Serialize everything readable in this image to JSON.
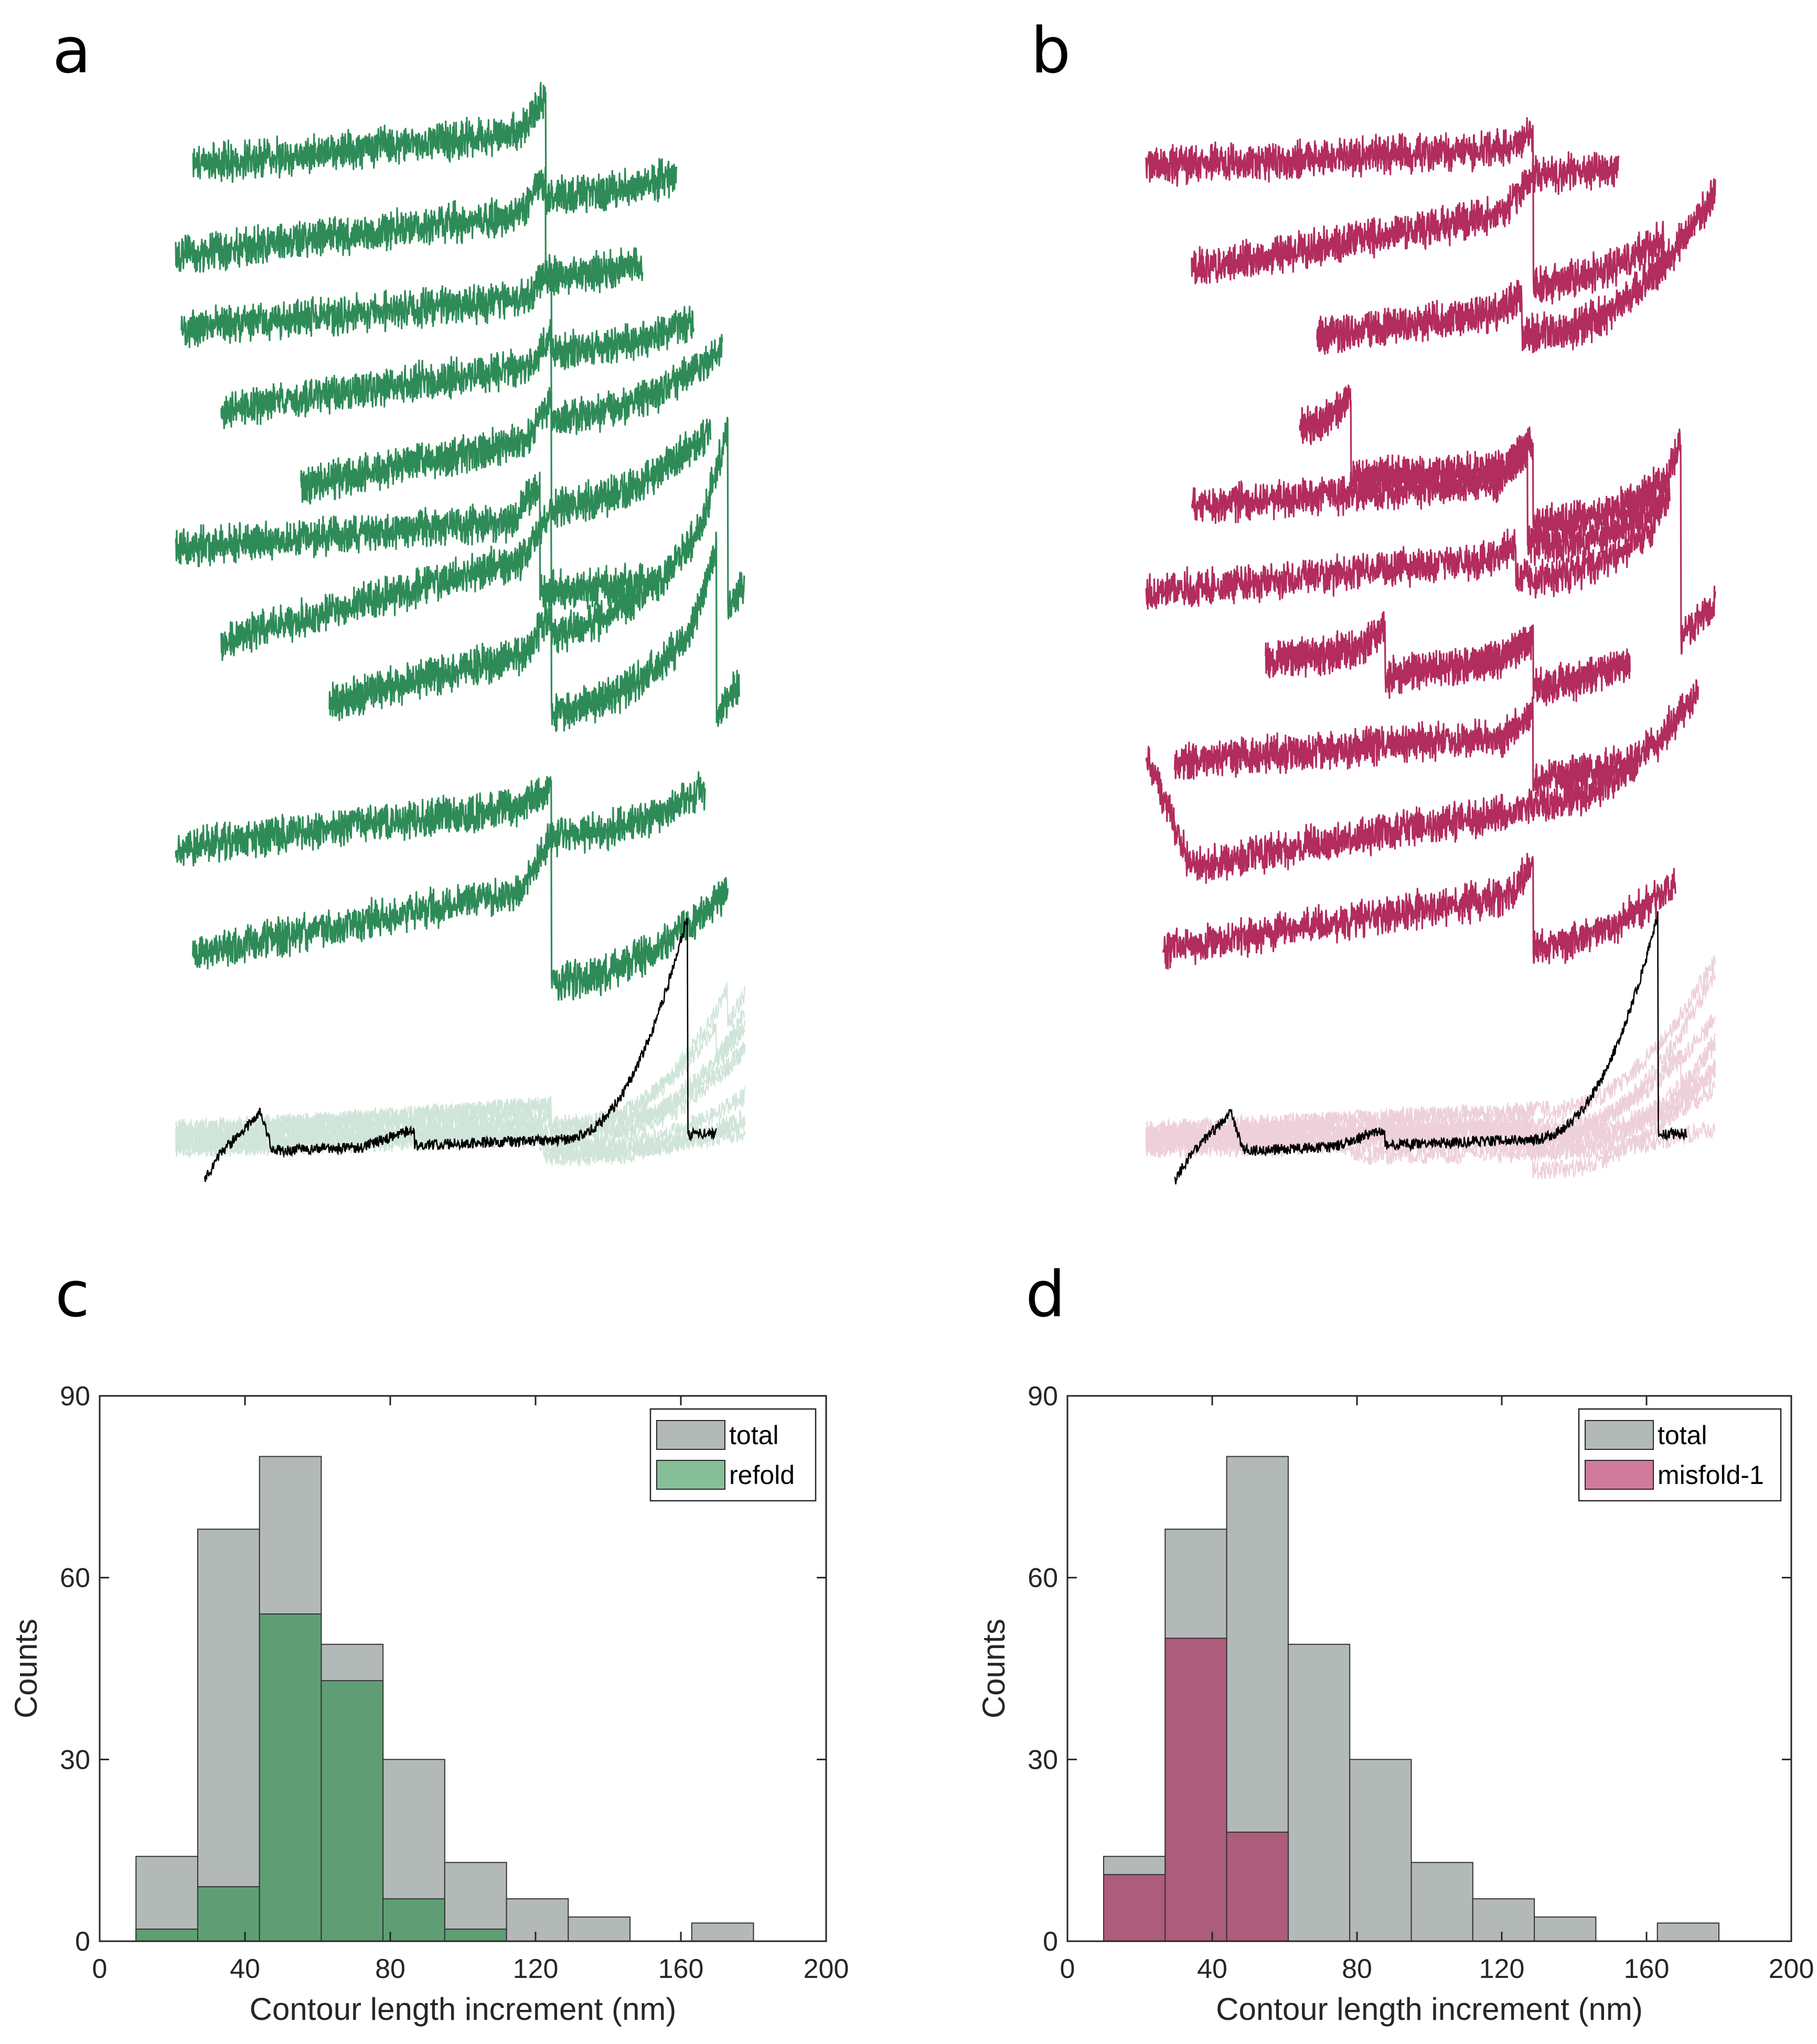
{
  "panels": {
    "a": {
      "letter": "a"
    },
    "b": {
      "letter": "b"
    },
    "c": {
      "letter": "c"
    },
    "d": {
      "letter": "d"
    }
  },
  "colors": {
    "green": "#2e8b57",
    "magenta": "#b22c5e",
    "total_fill": "#b3b9b7",
    "refold_fill": "#5f9e74",
    "misfold_fill": "#ad5c7b",
    "refold_legend": "#85bf98",
    "misfold_legend": "#d17a9c",
    "overlay": "#000000"
  },
  "chart_data": [
    {
      "panel": "a",
      "type": "line",
      "title": "",
      "xlabel": "",
      "ylabel": "",
      "axes_visible": false,
      "trace_count": 10,
      "traces": [
        {
          "start": 0.03,
          "end": 0.88,
          "offset": 0.86,
          "slope": 0.1,
          "steps": [
            [
              0.65,
              0.12
            ]
          ],
          "tail": 0.05
        },
        {
          "start": 0.0,
          "end": 0.82,
          "offset": 0.7,
          "slope": 0.12,
          "steps": [
            [
              0.65,
              0.12
            ]
          ],
          "tail": 0.03
        },
        {
          "start": 0.01,
          "end": 0.91,
          "offset": 0.565,
          "slope": 0.09,
          "steps": [
            [
              0.66,
              0.1
            ]
          ],
          "tail": 0.07
        },
        {
          "start": 0.08,
          "end": 0.96,
          "offset": 0.41,
          "slope": 0.14,
          "steps": [
            [
              0.66,
              0.1
            ]
          ],
          "tail": 0.12
        },
        {
          "start": 0.22,
          "end": 0.94,
          "offset": 0.24,
          "slope": 0.2,
          "steps": [
            [
              0.66,
              0.13
            ]
          ],
          "tail": 0.14
        },
        {
          "start": 0.0,
          "end": 0.82,
          "offset": 0.17,
          "slope": 0.08,
          "steps": [
            [
              0.64,
              0.13
            ]
          ],
          "tail": 0.02
        },
        {
          "start": 0.08,
          "end": 1.0,
          "offset": -0.02,
          "slope": 0.28,
          "steps": [
            [
              0.66,
              0.15
            ],
            [
              0.97,
              0.22
            ]
          ],
          "tail": 0.22
        },
        {
          "start": 0.27,
          "end": 0.99,
          "offset": -0.18,
          "slope": 0.26,
          "steps": [
            [
              0.66,
              0.12
            ],
            [
              0.95,
              0.2
            ]
          ],
          "tail": 0.18
        },
        {
          "start": 0.0,
          "end": 0.93,
          "offset": -0.37,
          "slope": 0.12,
          "steps": [
            [
              0.66,
              0.06
            ]
          ],
          "tail": 0.1
        },
        {
          "start": 0.03,
          "end": 0.97,
          "offset": -0.57,
          "slope": 0.2,
          "steps": [
            [
              0.66,
              0.18
            ]
          ],
          "tail": 0.14
        }
      ]
    },
    {
      "panel": "b",
      "type": "line",
      "title": "",
      "xlabel": "",
      "ylabel": "",
      "axes_visible": false,
      "trace_count": 10,
      "traces": [
        {
          "start": 0.0,
          "end": 0.83,
          "offset": 0.86,
          "slope": 0.05,
          "steps": [
            [
              0.68,
              0.05
            ]
          ],
          "tail": 0.03
        },
        {
          "start": 0.08,
          "end": 0.91,
          "offset": 0.66,
          "slope": 0.18,
          "steps": [
            [
              0.68,
              0.14
            ]
          ],
          "tail": 0.1
        },
        {
          "start": 0.3,
          "end": 1.0,
          "offset": 0.51,
          "slope": 0.14,
          "steps": [
            [
              0.66,
              0.05
            ]
          ],
          "tail": 0.22
        },
        {
          "start": 0.27,
          "end": 0.91,
          "offset": 0.38,
          "slope": 0.05,
          "steps": [
            [
              0.36,
              0.1
            ],
            [
              0.68,
              0.1
            ]
          ],
          "tail": 0.14
        },
        {
          "start": 0.08,
          "end": 0.92,
          "offset": 0.24,
          "slope": 0.08,
          "steps": [
            [
              0.67,
              0.12
            ]
          ],
          "tail": 0.14
        },
        {
          "start": 0.0,
          "end": 1.0,
          "offset": 0.09,
          "slope": 0.1,
          "steps": [
            [
              0.65,
              0.04
            ],
            [
              0.94,
              0.25
            ]
          ],
          "tail": 0.18
        },
        {
          "start": 0.21,
          "end": 0.85,
          "offset": -0.07,
          "slope": 0.16,
          "steps": [
            [
              0.42,
              0.06
            ],
            [
              0.68,
              0.06
            ]
          ],
          "tail": 0.08
        },
        {
          "start": 0.05,
          "end": 0.86,
          "offset": -0.22,
          "slope": 0.08,
          "steps": [
            [
              0.68,
              0.08
            ]
          ],
          "tail": 0.06
        },
        {
          "start": 0.0,
          "end": 0.97,
          "offset": -0.42,
          "slope": 0.18,
          "steps": [],
          "tail": 0.2,
          "drop_start": 0.22
        },
        {
          "start": 0.03,
          "end": 0.93,
          "offset": -0.56,
          "slope": 0.16,
          "steps": [
            [
              0.68,
              0.1
            ]
          ],
          "tail": 0.14
        }
      ]
    },
    {
      "panel": "c",
      "type": "bar",
      "title": "",
      "xlabel": "Contour length increment (nm)",
      "ylabel": "Counts",
      "xlim": [
        0,
        200
      ],
      "ylim": [
        0,
        90
      ],
      "xticks": [
        0,
        40,
        80,
        120,
        160,
        200
      ],
      "yticks": [
        0,
        30,
        60,
        90
      ],
      "bin_edges": [
        10,
        27,
        44,
        61,
        78,
        95,
        112,
        129,
        146,
        163,
        180
      ],
      "series": [
        {
          "name": "total",
          "values": [
            14,
            68,
            80,
            49,
            30,
            13,
            7,
            4,
            0,
            3
          ]
        },
        {
          "name": "refold",
          "values": [
            2,
            9,
            54,
            43,
            7,
            2,
            0,
            0,
            0,
            0
          ]
        }
      ],
      "legend": "top-right",
      "grid": false
    },
    {
      "panel": "d",
      "type": "bar",
      "title": "",
      "xlabel": "Contour length increment (nm)",
      "ylabel": "Counts",
      "xlim": [
        0,
        200
      ],
      "ylim": [
        0,
        90
      ],
      "xticks": [
        0,
        40,
        80,
        120,
        160,
        200
      ],
      "yticks": [
        0,
        30,
        60,
        90
      ],
      "bin_edges": [
        10,
        27,
        44,
        61,
        78,
        95,
        112,
        129,
        146,
        163,
        180
      ],
      "series": [
        {
          "name": "total",
          "values": [
            14,
            68,
            80,
            49,
            30,
            13,
            7,
            4,
            0,
            3
          ]
        },
        {
          "name": "misfold-1",
          "values": [
            11,
            50,
            18,
            0,
            0,
            0,
            0,
            0,
            0,
            0
          ]
        }
      ],
      "legend": "top-right",
      "grid": false
    }
  ]
}
